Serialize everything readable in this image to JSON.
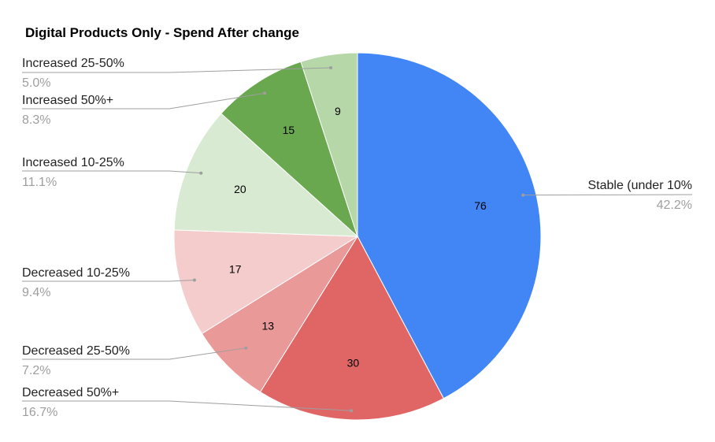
{
  "chart_data": {
    "type": "pie",
    "title": "Digital Products Only - Spend After change",
    "slices": [
      {
        "label": "Stable (under 10%",
        "value": 76,
        "percent": "42.2%",
        "color": "#4285f4"
      },
      {
        "label": "Decreased 50%+",
        "value": 30,
        "percent": "16.7%",
        "color": "#e06666"
      },
      {
        "label": "Decreased 25-50%",
        "value": 13,
        "percent": "7.2%",
        "color": "#ea9999"
      },
      {
        "label": "Decreased 10-25%",
        "value": 17,
        "percent": "9.4%",
        "color": "#f4cccc"
      },
      {
        "label": "Increased 10-25%",
        "value": 20,
        "percent": "11.1%",
        "color": "#d9ead3"
      },
      {
        "label": "Increased 50%+",
        "value": 15,
        "percent": "8.3%",
        "color": "#6aa84f"
      },
      {
        "label": "Increased 25-50%",
        "value": 9,
        "percent": "5.0%",
        "color": "#b6d7a8"
      }
    ],
    "legend": "callout labels"
  }
}
